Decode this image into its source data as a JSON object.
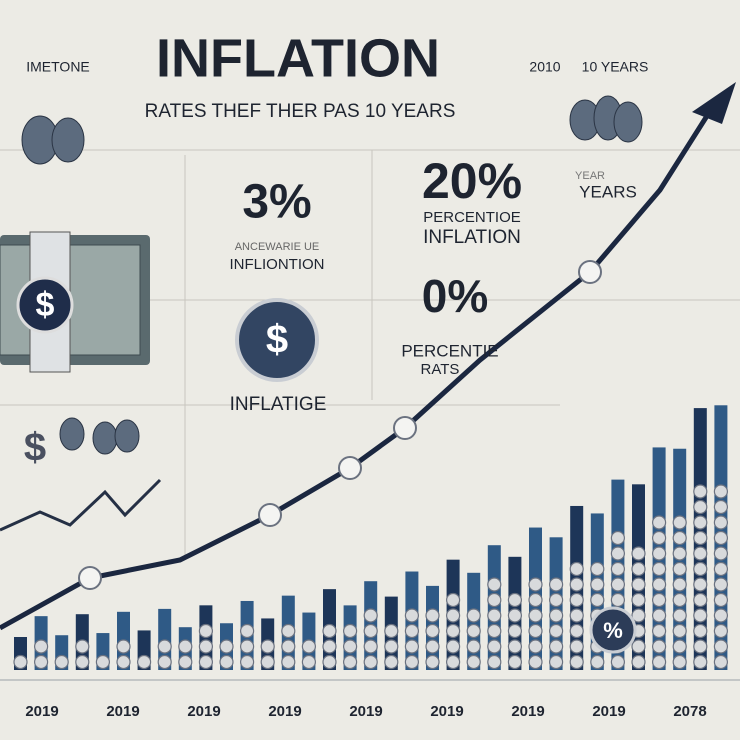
{
  "header": {
    "title": "INFLATION",
    "subtitle": "RATES THEF THER PAS 10 YEARS",
    "left_tag": "IMETONE",
    "right_year": "2010",
    "right_span": "10 YEARS"
  },
  "callouts": [
    {
      "value": "3%",
      "caption": "ANCEWARIE UE",
      "label": "INFLIONTION"
    },
    {
      "value": "20%",
      "caption": "PERCENTIOE",
      "label": "INFLATION"
    },
    {
      "value": "0%",
      "caption": "PERCENTIE",
      "label": "RATS"
    }
  ],
  "side_labels": {
    "year_small": "YEAR",
    "years": "YEARS",
    "inflation_mid": "INFLATIGE"
  },
  "symbols": {
    "dollar": "$",
    "percent": "%"
  },
  "x_labels": [
    "2019",
    "2019",
    "2019",
    "2019",
    "2019",
    "2019",
    "2019",
    "2019",
    "2078"
  ]
}
